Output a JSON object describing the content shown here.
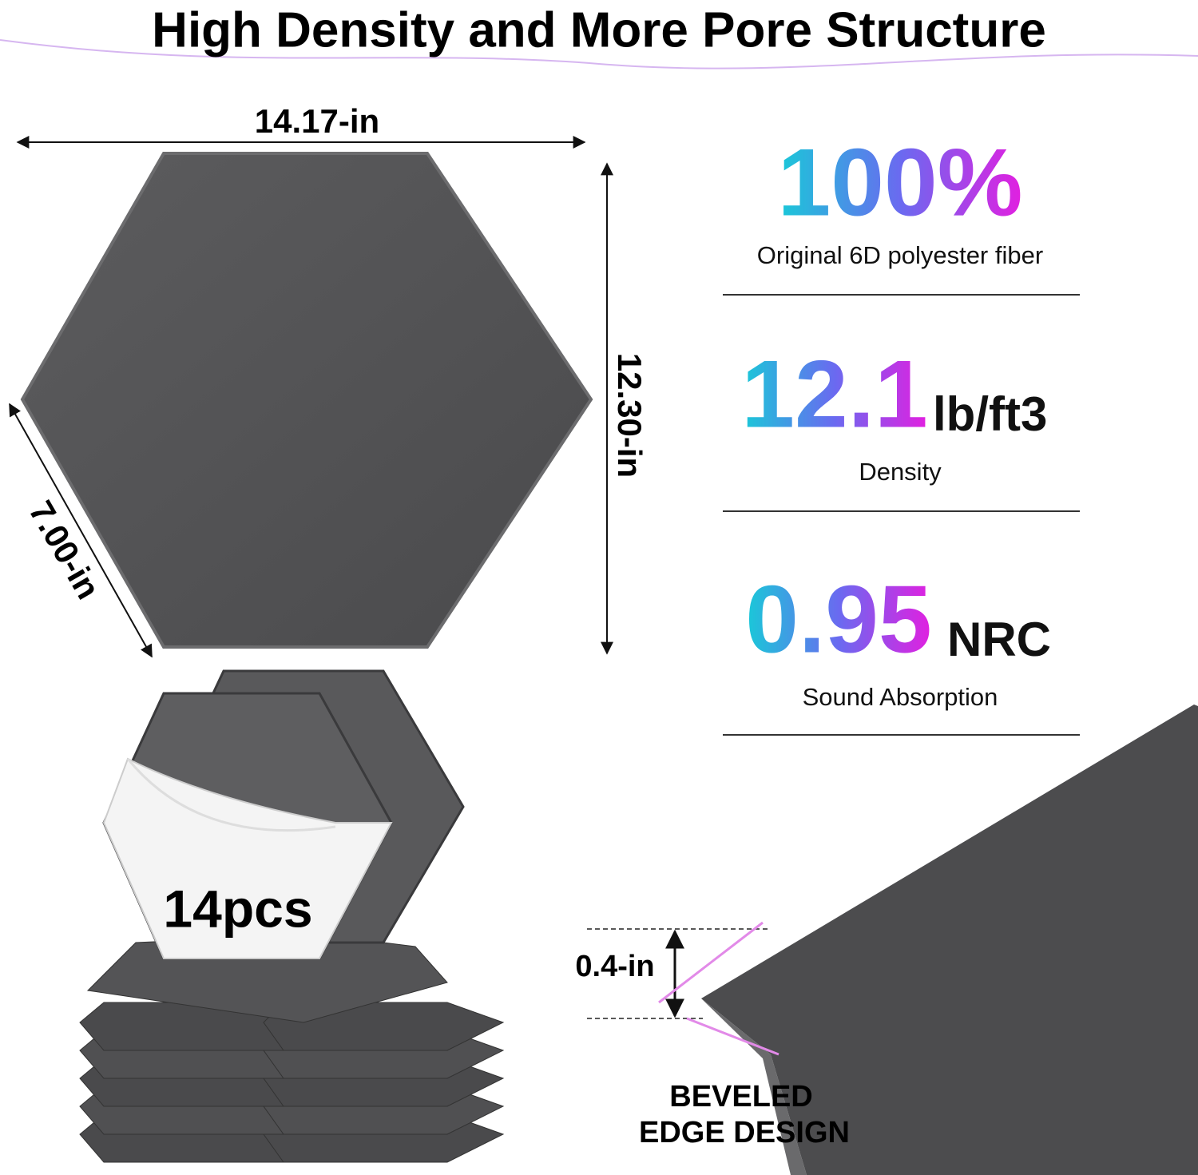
{
  "header": {
    "title": "High Density and More Pore Structure"
  },
  "dimensions": {
    "width": "14.17-in",
    "height": "12.30-in",
    "side": "7.00-in"
  },
  "specs": [
    {
      "value": "100%",
      "caption": "Original 6D polyester fiber"
    },
    {
      "value": "12.1",
      "unit": "lb/ft3",
      "caption": "Density"
    },
    {
      "value": "0.95",
      "unit": "NRC",
      "caption": "Sound Absorption"
    }
  ],
  "pack": {
    "label": "14pcs"
  },
  "edge": {
    "thickness": "0.4-in",
    "label_line1": "BEVELED",
    "label_line2": "EDGE DESIGN"
  }
}
